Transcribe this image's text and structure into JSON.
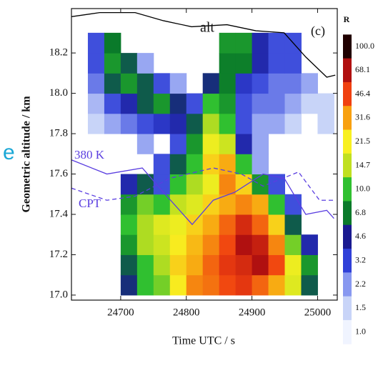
{
  "chart_data": {
    "type": "heatmap",
    "xlabel": "Time UTC / s",
    "ylabel": "Geometric altitude / km",
    "xlim": [
      24625,
      25030
    ],
    "ylim": [
      16.975,
      18.42
    ],
    "xticks": [
      24700,
      24800,
      24900,
      25000
    ],
    "yticks": [
      {
        "value": 17.0,
        "label": "17.0"
      },
      17.2,
      17.4,
      17.6,
      17.8,
      {
        "value": 18.0,
        "label": "18.0"
      },
      18.2
    ],
    "x": [
      24662.5,
      24687.5,
      24712.5,
      24737.5,
      24762.5,
      24787.5,
      24812.5,
      24837.5,
      24862.5,
      24887.5,
      24912.5,
      24937.5,
      24962.5,
      24987.5,
      25012.5
    ],
    "y": [
      17.05,
      17.15,
      17.25,
      17.35,
      17.45,
      17.55,
      17.65,
      17.75,
      17.85,
      17.95,
      18.05,
      18.15,
      18.25
    ],
    "z": [
      [
        null,
        null,
        5,
        10,
        12,
        22,
        35,
        38,
        45,
        50,
        40,
        30,
        18,
        6,
        null
      ],
      [
        null,
        null,
        6,
        10,
        14,
        25,
        30,
        40,
        50,
        55,
        68,
        45,
        20,
        8,
        null
      ],
      [
        null,
        null,
        8,
        14,
        16,
        22,
        28,
        35,
        45,
        68,
        60,
        35,
        12,
        4,
        null
      ],
      [
        null,
        null,
        10,
        14,
        18,
        20,
        25,
        30,
        40,
        55,
        40,
        25,
        6,
        null,
        null
      ],
      [
        null,
        null,
        8,
        12,
        10,
        15,
        18,
        25,
        30,
        35,
        30,
        10,
        3,
        null,
        null
      ],
      [
        null,
        null,
        4,
        6,
        3,
        10,
        14,
        20,
        35,
        25,
        8,
        3,
        null,
        null,
        null
      ],
      [
        null,
        null,
        null,
        null,
        3,
        6,
        10,
        25,
        30,
        10,
        2,
        null,
        null,
        null,
        null
      ],
      [
        null,
        null,
        null,
        2,
        null,
        3,
        8,
        20,
        16,
        4,
        2,
        null,
        null,
        null,
        null
      ],
      [
        1.5,
        2,
        2.5,
        3,
        3.5,
        4,
        6,
        14,
        10,
        3,
        2,
        2,
        1.5,
        null,
        1.5
      ],
      [
        1.8,
        3,
        4,
        6,
        8,
        5,
        3,
        10,
        8,
        3,
        2.5,
        2.5,
        2,
        1.5,
        1.5
      ],
      [
        2.5,
        6,
        8,
        6,
        3,
        2,
        null,
        5,
        7,
        3.5,
        3,
        2.5,
        2.5,
        2,
        null
      ],
      [
        3,
        8,
        6,
        2,
        null,
        null,
        null,
        null,
        7,
        7,
        4,
        3,
        3,
        null,
        null
      ],
      [
        3,
        6.8,
        null,
        null,
        null,
        null,
        null,
        null,
        8,
        8,
        4,
        3,
        3,
        null,
        null
      ]
    ],
    "colorbar": {
      "title": "R",
      "ticks": [
        {
          "value": 100,
          "label": "100.0"
        },
        68.1,
        46.4,
        31.6,
        21.5,
        14.7,
        {
          "value": 10,
          "label": "10.0"
        },
        6.8,
        4.6,
        3.2,
        2.2,
        1.5,
        {
          "value": 1,
          "label": "1.0"
        }
      ],
      "colors": [
        "#200000",
        "#b01010",
        "#f04010",
        "#f8a010",
        "#f8f020",
        "#c0e020",
        "#30c030",
        "#0a7a2a",
        "#1a1a90",
        "#3040d8",
        "#8898f0",
        "#c8d4f8",
        "#f0f4ff"
      ]
    },
    "lines": [
      {
        "name": "alt",
        "color": "#000000",
        "dash": false,
        "x": [
          24625,
          24668,
          24722,
          24765,
          24808,
          24862,
          24906,
          24949,
          24982,
          25014,
          25027
        ],
        "values": [
          18.38,
          18.4,
          18.4,
          18.36,
          18.33,
          18.34,
          18.31,
          18.3,
          18.18,
          18.08,
          18.09
        ]
      },
      {
        "name": "380 K",
        "color": "#5a3ee0",
        "dash": false,
        "x": [
          24625,
          24679,
          24733,
          24765,
          24809,
          24841,
          24874,
          24917,
          24949,
          24982,
          25014,
          25025
        ],
        "values": [
          17.67,
          17.6,
          17.63,
          17.51,
          17.35,
          17.47,
          17.51,
          17.6,
          17.58,
          17.4,
          17.42,
          17.38
        ]
      },
      {
        "name": "CPT",
        "color": "#5a3ee0",
        "dash": true,
        "x": [
          24625,
          24679,
          24722,
          24776,
          24841,
          24884,
          24917,
          24971,
          25003,
          25025
        ],
        "values": [
          17.53,
          17.47,
          17.49,
          17.58,
          17.63,
          17.6,
          17.54,
          17.61,
          17.47,
          17.47
        ]
      }
    ],
    "panel_label": "(c)",
    "edge_text": "e"
  }
}
